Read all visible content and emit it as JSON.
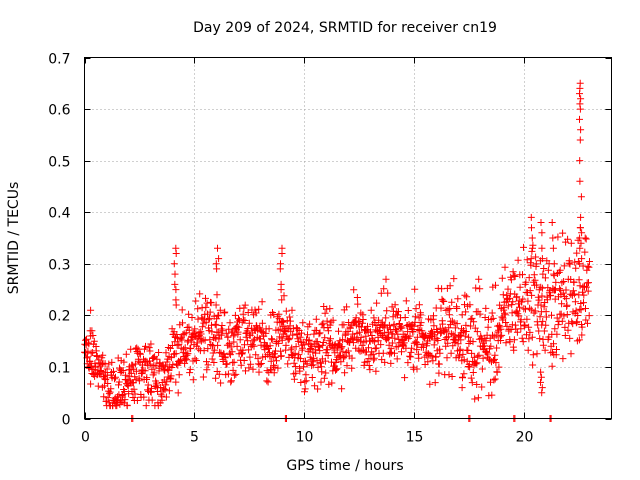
{
  "chart_data": {
    "type": "scatter",
    "title": "Day 209 of 2024, SRMTID for receiver cn19",
    "xlabel": "GPS time / hours",
    "ylabel": "SRMTID / TECUs",
    "xlim": [
      0,
      24
    ],
    "ylim": [
      0,
      0.7
    ],
    "xticks": [
      "0",
      "5",
      "10",
      "15",
      "20"
    ],
    "yticks": [
      "0",
      "0.1",
      "0.2",
      "0.3",
      "0.4",
      "0.5",
      "0.6",
      "0.7"
    ],
    "grid": true,
    "marker": "+",
    "color": "#ff0000",
    "series": [
      {
        "name": "SRMTID",
        "trend": [
          [
            0.0,
            0.12
          ],
          [
            0.4,
            0.13
          ],
          [
            0.8,
            0.07
          ],
          [
            1.2,
            0.05
          ],
          [
            1.6,
            0.06
          ],
          [
            2.0,
            0.08
          ],
          [
            2.5,
            0.1
          ],
          [
            3.0,
            0.09
          ],
          [
            3.5,
            0.08
          ],
          [
            4.0,
            0.12
          ],
          [
            4.5,
            0.14
          ],
          [
            5.0,
            0.15
          ],
          [
            5.5,
            0.17
          ],
          [
            6.0,
            0.15
          ],
          [
            6.5,
            0.13
          ],
          [
            7.0,
            0.14
          ],
          [
            7.5,
            0.15
          ],
          [
            8.0,
            0.15
          ],
          [
            8.5,
            0.12
          ],
          [
            9.0,
            0.18
          ],
          [
            9.5,
            0.14
          ],
          [
            10.0,
            0.13
          ],
          [
            10.5,
            0.14
          ],
          [
            11.0,
            0.15
          ],
          [
            11.5,
            0.13
          ],
          [
            12.0,
            0.16
          ],
          [
            12.5,
            0.17
          ],
          [
            13.0,
            0.15
          ],
          [
            13.5,
            0.17
          ],
          [
            14.0,
            0.18
          ],
          [
            14.5,
            0.15
          ],
          [
            15.0,
            0.16
          ],
          [
            15.5,
            0.13
          ],
          [
            16.0,
            0.15
          ],
          [
            16.5,
            0.18
          ],
          [
            17.0,
            0.17
          ],
          [
            17.5,
            0.14
          ],
          [
            18.0,
            0.15
          ],
          [
            18.5,
            0.13
          ],
          [
            19.0,
            0.18
          ],
          [
            19.5,
            0.22
          ],
          [
            20.0,
            0.22
          ],
          [
            20.5,
            0.24
          ],
          [
            21.0,
            0.2
          ],
          [
            21.5,
            0.22
          ],
          [
            22.0,
            0.24
          ],
          [
            22.5,
            0.27
          ],
          [
            23.0,
            0.24
          ]
        ],
        "spread": [
          [
            0.0,
            0.03
          ],
          [
            4.0,
            0.05
          ],
          [
            9.0,
            0.05
          ],
          [
            15.0,
            0.05
          ],
          [
            19.5,
            0.07
          ],
          [
            23.0,
            0.09
          ]
        ],
        "spikes": [
          {
            "x": 4.15,
            "values": [
              0.33,
              0.32,
              0.3,
              0.28,
              0.26,
              0.25,
              0.23,
              0.22
            ]
          },
          {
            "x": 6.05,
            "values": [
              0.33,
              0.31,
              0.3,
              0.29,
              0.24,
              0.22
            ]
          },
          {
            "x": 8.95,
            "values": [
              0.33,
              0.32,
              0.3,
              0.29,
              0.26,
              0.25,
              0.23
            ]
          },
          {
            "x": 20.35,
            "values": [
              0.39,
              0.37,
              0.35,
              0.33,
              0.31
            ]
          },
          {
            "x": 20.85,
            "values": [
              0.38,
              0.36,
              0.33,
              0.31,
              0.28
            ]
          },
          {
            "x": 21.35,
            "values": [
              0.38,
              0.35,
              0.33,
              0.3,
              0.28
            ]
          },
          {
            "x": 22.6,
            "values": [
              0.65,
              0.64,
              0.63,
              0.62,
              0.61,
              0.6,
              0.58,
              0.56,
              0.54,
              0.5,
              0.46,
              0.43,
              0.39,
              0.37,
              0.36,
              0.35,
              0.34,
              0.33,
              0.31,
              0.3
            ]
          },
          {
            "x": 20.8,
            "values": [
              0.09,
              0.08,
              0.07,
              0.06,
              0.05
            ]
          },
          {
            "x": 0.3,
            "values": [
              0.21,
              0.17,
              0.16
            ]
          },
          {
            "x": 17.2,
            "values": [
              0.06,
              0.08
            ]
          }
        ],
        "zeros": [
          2.15,
          9.15,
          17.5,
          19.55,
          21.2
        ]
      }
    ]
  }
}
